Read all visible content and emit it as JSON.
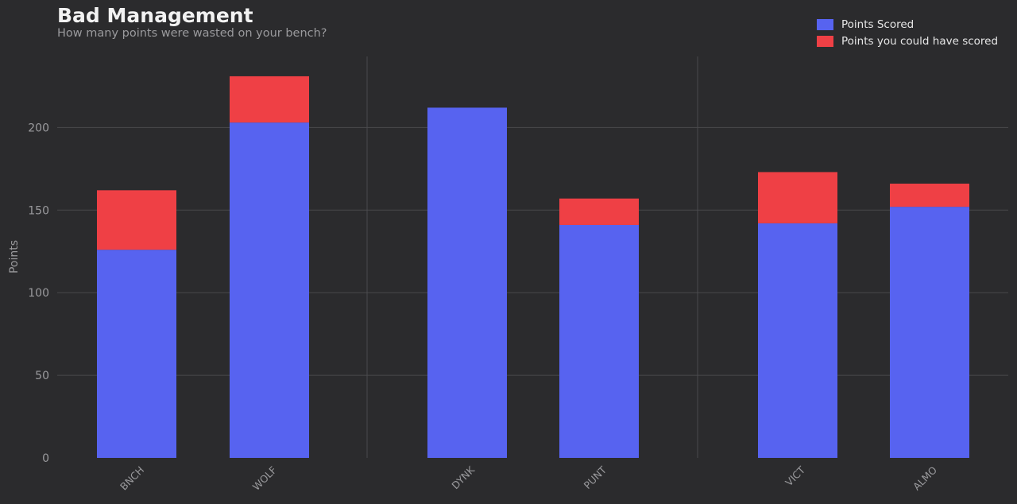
{
  "chart_data": {
    "type": "bar",
    "stacked": true,
    "title": "Bad Management",
    "subtitle": "How many points were wasted on your bench?",
    "ylabel": "Points",
    "xlabel": "",
    "ylim": [
      0,
      243
    ],
    "yticks": [
      0,
      50,
      100,
      150,
      200
    ],
    "grid": true,
    "legend_position": "top-right",
    "categories": [
      "BNCH",
      "WOLF",
      "DYNK",
      "PUNT",
      "VICT",
      "ALMO"
    ],
    "groups": [
      [
        "BNCH",
        "WOLF"
      ],
      [
        "DYNK",
        "PUNT"
      ],
      [
        "VICT",
        "ALMO"
      ]
    ],
    "series": [
      {
        "name": "Points Scored",
        "color": "#5763f0",
        "values": [
          126,
          203,
          212,
          141,
          142,
          152
        ]
      },
      {
        "name": "Points you could have scored",
        "color": "#ef4045",
        "values": [
          36,
          28,
          0,
          16,
          31,
          14
        ]
      }
    ]
  }
}
